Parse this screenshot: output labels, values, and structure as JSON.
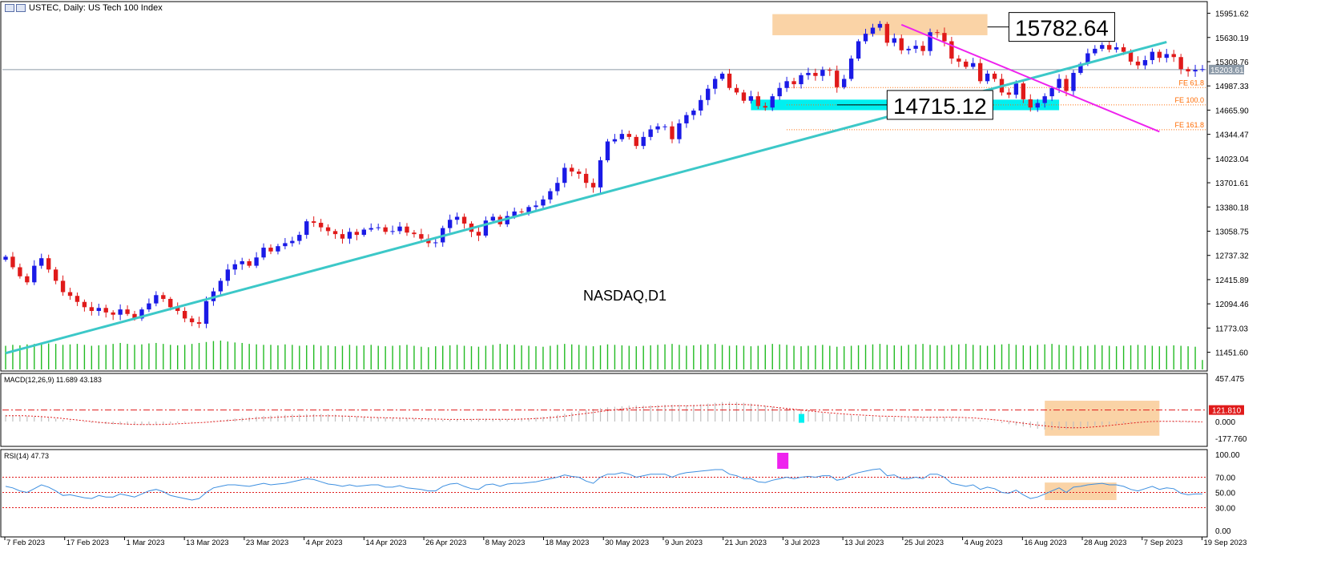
{
  "window": {
    "symbol": "USTEC",
    "title": "USTEC, Daily:  US Tech 100 Index",
    "watermark": "NASDAQ,D1"
  },
  "colors": {
    "bull": "#1a1ae6",
    "bear": "#e01a1a",
    "volume": "#22bb22",
    "trendline": "#3cc8c8",
    "pink": "#ee22ee",
    "zone_orange": "#fad3a6",
    "zone_cyan": "#00f0f0",
    "fe_line": "#ff6a00",
    "macd_hist": "#c0c0c0",
    "macd_signal": "#e01a1a",
    "rsi_line": "#3d8fe0",
    "rsi_levels": "#e01a1a"
  },
  "annotations": {
    "high_label": "15782.64",
    "low_label": "14715.12",
    "current_price": "15203.61",
    "fe_labels": [
      "FE 61.8",
      "FE 100.0",
      "FE 161.8"
    ]
  },
  "macd": {
    "title": "MACD(12,26,9) 11.689 43.183",
    "axis": [
      "457.475",
      "121.810",
      "0.000",
      "-177.760"
    ],
    "highlight_value": "121.810"
  },
  "rsi": {
    "title": "RSI(14) 47.73",
    "axis": [
      "100.00",
      "70.00",
      "50.00",
      "30.00",
      "0.00"
    ]
  },
  "chart_data": {
    "type": "candlestick",
    "price_axis_labels": [
      "15951.62",
      "15630.19",
      "15308.76",
      "14987.33",
      "14665.90",
      "14344.47",
      "14023.04",
      "13701.61",
      "13380.18",
      "13058.75",
      "12737.32",
      "12415.89",
      "12094.46",
      "11773.03",
      "11451.60"
    ],
    "date_labels": [
      "7 Feb 2023",
      "17 Feb 2023",
      "1 Mar 2023",
      "13 Mar 2023",
      "23 Mar 2023",
      "4 Apr 2023",
      "14 Apr 2023",
      "26 Apr 2023",
      "8 May 2023",
      "18 May 2023",
      "30 May 2023",
      "9 Jun 2023",
      "21 Jun 2023",
      "3 Jul 2023",
      "13 Jul 2023",
      "25 Jul 2023",
      "4 Aug 2023",
      "16 Aug 2023",
      "28 Aug 2023",
      "7 Sep 2023",
      "19 Sep 2023"
    ],
    "closes": [
      12720,
      12580,
      12460,
      12380,
      12600,
      12700,
      12550,
      12400,
      12250,
      12200,
      12120,
      12050,
      12000,
      12040,
      11980,
      11950,
      12020,
      11960,
      11900,
      12020,
      12100,
      12210,
      12160,
      12050,
      12000,
      11900,
      11850,
      11830,
      12130,
      12260,
      12400,
      12550,
      12620,
      12660,
      12600,
      12710,
      12840,
      12790,
      12860,
      12900,
      12930,
      13010,
      13190,
      13170,
      13110,
      13060,
      13020,
      12960,
      13050,
      13010,
      13080,
      13100,
      13110,
      13050,
      13060,
      13120,
      13040,
      13020,
      12960,
      12900,
      12910,
      13100,
      13210,
      13250,
      13160,
      13050,
      13000,
      13200,
      13250,
      13150,
      13260,
      13320,
      13310,
      13380,
      13400,
      13480,
      13590,
      13700,
      13900,
      13850,
      13820,
      13700,
      13640,
      14000,
      14250,
      14280,
      14350,
      14310,
      14190,
      14310,
      14410,
      14450,
      14450,
      14280,
      14490,
      14600,
      14660,
      14800,
      14950,
      15080,
      15150,
      14960,
      14900,
      14790,
      14850,
      14720,
      14700,
      14850,
      14960,
      15050,
      15010,
      15130,
      15160,
      15120,
      15200,
      15190,
      14970,
      15080,
      15350,
      15580,
      15680,
      15760,
      15810,
      15560,
      15620,
      15460,
      15480,
      15520,
      15450,
      15700,
      15690,
      15580,
      15350,
      15310,
      15240,
      15290,
      15050,
      15150,
      15080,
      14900,
      14870,
      15020,
      14810,
      14700,
      14760,
      14850,
      14960,
      15080,
      14920,
      15160,
      15280,
      15420,
      15480,
      15530,
      15470,
      15500,
      15440,
      15310,
      15260,
      15330,
      15440,
      15360,
      15410,
      15370,
      15210,
      15180,
      15200,
      15210
    ],
    "volumes": [
      500,
      520,
      510,
      530,
      540,
      560,
      550,
      540,
      520,
      530,
      540,
      520,
      500,
      510,
      520,
      540,
      560,
      540,
      520,
      530,
      550,
      560,
      540,
      520,
      510,
      520,
      540,
      560,
      580,
      600,
      610,
      590,
      570,
      560,
      540,
      530,
      520,
      520,
      510,
      530,
      520,
      500,
      510,
      520,
      500,
      510,
      490,
      500,
      520,
      500,
      510,
      520,
      500,
      490,
      500,
      510,
      520,
      500,
      480,
      470,
      490,
      500,
      510,
      520,
      500,
      490,
      480,
      500,
      520,
      540,
      530,
      520,
      510,
      500,
      490,
      480,
      500,
      520,
      540,
      530,
      520,
      500,
      490,
      510,
      530,
      520,
      510,
      500,
      490,
      500,
      510,
      520,
      530,
      540,
      520,
      500,
      510,
      520,
      530,
      540,
      520,
      500,
      510,
      500,
      490,
      500,
      520,
      540,
      530,
      520,
      500,
      490,
      500,
      510,
      520,
      500,
      480,
      490,
      500,
      510,
      520,
      530,
      540,
      520,
      510,
      500,
      520,
      530,
      540,
      520,
      510,
      500,
      520,
      530,
      540,
      520,
      510,
      500,
      520,
      530,
      540,
      520,
      510,
      500,
      520,
      530,
      540,
      520,
      510,
      500,
      490,
      500,
      520,
      510,
      500,
      490,
      500,
      510,
      520,
      510,
      500,
      490,
      500,
      510,
      500,
      490,
      480,
      200
    ],
    "macd_hist": [
      70,
      66,
      62,
      58,
      52,
      48,
      40,
      30,
      20,
      10,
      2,
      -6,
      -14,
      -20,
      -26,
      -30,
      -32,
      -34,
      -36,
      -36,
      -34,
      -30,
      -26,
      -20,
      -14,
      -10,
      -6,
      -2,
      2,
      8,
      16,
      24,
      32,
      40,
      46,
      52,
      58,
      62,
      66,
      70,
      74,
      76,
      78,
      78,
      78,
      76,
      72,
      66,
      60,
      54,
      50,
      46,
      44,
      42,
      40,
      38,
      36,
      32,
      28,
      24,
      20,
      18,
      18,
      20,
      24,
      28,
      30,
      30,
      28,
      26,
      26,
      28,
      32,
      36,
      42,
      50,
      60,
      70,
      82,
      96,
      110,
      122,
      132,
      142,
      150,
      156,
      162,
      168,
      170,
      168,
      170,
      174,
      178,
      178,
      176,
      172,
      176,
      182,
      190,
      198,
      206,
      208,
      206,
      198,
      190,
      180,
      168,
      156,
      148,
      140,
      132,
      120,
      110,
      100,
      92,
      84,
      78,
      72,
      66,
      60,
      56,
      54,
      50,
      48,
      46,
      44,
      42,
      40,
      40,
      42,
      44,
      44,
      42,
      38,
      32,
      24,
      16,
      6,
      -4,
      -16,
      -28,
      -40,
      -52,
      -64,
      -76,
      -84,
      -88,
      -86,
      -82,
      -76,
      -66,
      -56,
      -46,
      -38,
      -30,
      -24,
      -18,
      -12,
      -8,
      -4,
      -2,
      -4,
      -6,
      -8,
      -10,
      -10,
      -10
    ],
    "macd_signal": [
      60,
      62,
      62,
      60,
      56,
      52,
      46,
      40,
      32,
      24,
      16,
      8,
      0,
      -8,
      -14,
      -20,
      -24,
      -28,
      -30,
      -32,
      -32,
      -32,
      -30,
      -28,
      -24,
      -20,
      -16,
      -12,
      -8,
      -2,
      4,
      10,
      16,
      22,
      28,
      34,
      38,
      42,
      46,
      50,
      54,
      56,
      58,
      60,
      60,
      60,
      60,
      58,
      56,
      52,
      48,
      44,
      42,
      40,
      38,
      36,
      34,
      32,
      30,
      28,
      26,
      24,
      22,
      22,
      22,
      22,
      24,
      24,
      24,
      24,
      24,
      24,
      26,
      28,
      32,
      36,
      42,
      48,
      56,
      66,
      76,
      86,
      96,
      106,
      116,
      124,
      132,
      140,
      146,
      150,
      154,
      158,
      162,
      164,
      166,
      166,
      168,
      170,
      172,
      176,
      180,
      182,
      182,
      180,
      176,
      170,
      162,
      154,
      146,
      138,
      130,
      122,
      114,
      106,
      98,
      92,
      86,
      80,
      74,
      70,
      66,
      62,
      58,
      56,
      54,
      52,
      50,
      48,
      46,
      46,
      46,
      46,
      46,
      44,
      42,
      38,
      32,
      26,
      18,
      10,
      2,
      -8,
      -18,
      -28,
      -38,
      -46,
      -54,
      -60,
      -64,
      -66,
      -66,
      -62,
      -56,
      -50,
      -42,
      -34,
      -26,
      -18,
      -10,
      -4,
      0,
      2,
      2,
      2,
      2,
      0,
      -2,
      -4
    ],
    "rsi": [
      58,
      56,
      52,
      50,
      55,
      60,
      57,
      52,
      46,
      47,
      45,
      43,
      42,
      46,
      44,
      44,
      48,
      46,
      44,
      48,
      52,
      54,
      51,
      46,
      44,
      42,
      40,
      42,
      50,
      56,
      58,
      60,
      60,
      59,
      58,
      60,
      62,
      60,
      61,
      62,
      64,
      66,
      68,
      67,
      64,
      61,
      60,
      58,
      60,
      58,
      59,
      60,
      60,
      57,
      57,
      59,
      56,
      55,
      54,
      52,
      52,
      58,
      61,
      62,
      58,
      55,
      54,
      60,
      61,
      58,
      61,
      62,
      62,
      63,
      64,
      66,
      68,
      70,
      73,
      71,
      70,
      65,
      62,
      70,
      74,
      74,
      76,
      74,
      70,
      72,
      74,
      74,
      74,
      70,
      74,
      76,
      77,
      78,
      79,
      80,
      80,
      74,
      72,
      68,
      68,
      64,
      63,
      66,
      68,
      70,
      68,
      70,
      71,
      70,
      72,
      72,
      66,
      68,
      73,
      76,
      78,
      80,
      81,
      72,
      73,
      68,
      68,
      70,
      68,
      74,
      74,
      70,
      62,
      60,
      58,
      60,
      54,
      57,
      55,
      50,
      49,
      53,
      47,
      42,
      44,
      48,
      52,
      56,
      50,
      57,
      58,
      60,
      61,
      62,
      60,
      60,
      58,
      54,
      52,
      55,
      58,
      54,
      56,
      55,
      49,
      47,
      48,
      48
    ],
    "rsi_levels": [
      70,
      50,
      30
    ],
    "x_range": [
      0,
      167
    ],
    "y_range": [
      11330,
      16000
    ]
  }
}
